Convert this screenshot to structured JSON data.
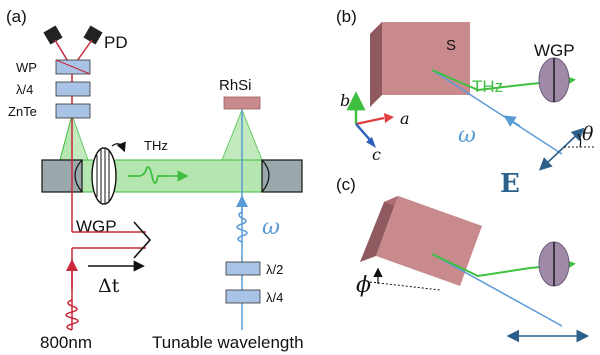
{
  "panels": {
    "a": "(a)",
    "b": "(b)",
    "c": "(c)"
  },
  "panel_a": {
    "pd": "PD",
    "wp": "WP",
    "quarter_wave_top": "λ/4",
    "znte": "ZnTe",
    "thz": "THz",
    "wgp": "WGP",
    "delay": "Δt",
    "pump_label": "800nm",
    "rhsi": "RhSi",
    "omega": "ω",
    "half_wave": "λ/2",
    "quarter_wave_bottom": "λ/4",
    "tunable": "Tunable wavelength"
  },
  "panel_b": {
    "sample": "S",
    "wgp": "WGP",
    "thz": "THz",
    "omega": "ω",
    "theta": "θ",
    "field": "E",
    "axis_a": "a",
    "axis_b": "b",
    "axis_c": "c"
  },
  "panel_c": {
    "phi": "ϕ"
  },
  "colors": {
    "red_beam": "#c8283a",
    "blue_beam": "#5b9bd5",
    "thz_green": "#3fbf3f",
    "sample": "#c98a8e",
    "wgp": "#a08aa8",
    "optic": "#a9c3e6"
  }
}
